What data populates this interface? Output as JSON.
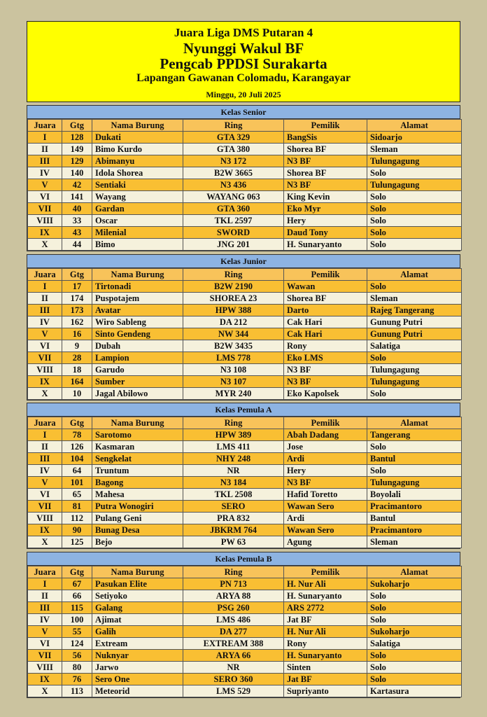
{
  "header": {
    "title": "Juara Liga DMS Putaran 4",
    "subtitle": "Nyunggi Wakul BF",
    "organizer": "Pengcab PPDSI Surakarta",
    "location": "Lapangan Gawanan Colomadu, Karangayar",
    "date": "Minggu, 20 Juli 2025"
  },
  "sections": [
    {
      "title": "Kelas Senior",
      "columns": [
        "Juara",
        "Gtg",
        "Nama Burung",
        "Ring",
        "Pemilik",
        "Alamat"
      ],
      "rows": [
        [
          "I",
          "128",
          "Dukati",
          "GTA 329",
          "BangSis",
          "Sidoarjo"
        ],
        [
          "II",
          "149",
          "Bimo Kurdo",
          "GTA 380",
          "Shorea BF",
          "Sleman"
        ],
        [
          "III",
          "129",
          "Abimanyu",
          "N3 172",
          "N3 BF",
          "Tulungagung"
        ],
        [
          "IV",
          "140",
          "Idola Shorea",
          "B2W 3665",
          "Shorea BF",
          "Solo"
        ],
        [
          "V",
          "42",
          "Sentiaki",
          "N3 436",
          "N3 BF",
          "Tulungagung"
        ],
        [
          "VI",
          "141",
          "Wayang",
          "WAYANG 063",
          "King Kevin",
          "Solo"
        ],
        [
          "VII",
          "40",
          "Gardan",
          "GTA 360",
          "Eko Myr",
          "Solo"
        ],
        [
          "VIII",
          "33",
          "Oscar",
          "TKL 2597",
          "Hery",
          "Solo"
        ],
        [
          "IX",
          "43",
          "Milenial",
          "SWORD",
          "Daud Tony",
          "Solo"
        ],
        [
          "X",
          "44",
          "Bimo",
          "JNG 201",
          "H. Sunaryanto",
          "Solo"
        ]
      ]
    },
    {
      "title": "Kelas Junior",
      "columns": [
        "Juara",
        "Gtg",
        "Nama Burung",
        "Ring",
        "Pemilik",
        "Alamat"
      ],
      "rows": [
        [
          "I",
          "17",
          "Tirtonadi",
          "B2W 2190",
          "Wawan",
          "Solo"
        ],
        [
          "II",
          "174",
          "Puspotajem",
          "SHOREA 23",
          "Shorea BF",
          "Sleman"
        ],
        [
          "III",
          "173",
          "Avatar",
          "HPW 388",
          "Darto",
          "Rajeg Tangerang"
        ],
        [
          "IV",
          "162",
          "Wiro Sableng",
          "DA 212",
          "Cak Hari",
          "Gunung Putri"
        ],
        [
          "V",
          "16",
          "Sinto Gendeng",
          "NW 344",
          "Cak Hari",
          "Gunung Putri"
        ],
        [
          "VI",
          "9",
          "Dubah",
          "B2W 3435",
          "Rony",
          "Salatiga"
        ],
        [
          "VII",
          "28",
          "Lampion",
          "LMS 778",
          "Eko LMS",
          "Solo"
        ],
        [
          "VIII",
          "18",
          "Garudo",
          "N3 108",
          "N3 BF",
          "Tulungagung"
        ],
        [
          "IX",
          "164",
          "Sumber",
          "N3 107",
          "N3 BF",
          "Tulungagung"
        ],
        [
          "X",
          "10",
          "Jagal Abilowo",
          "MYR 240",
          "Eko Kapolsek",
          "Solo"
        ]
      ]
    },
    {
      "title": "Kelas Pemula A",
      "columns": [
        "Juara",
        "Gtg",
        "Nama Burung",
        "Ring",
        "Pemilik",
        "Alamat"
      ],
      "rows": [
        [
          "I",
          "78",
          "Sarotomo",
          "HPW 389",
          "Abah Dadang",
          "Tangerang"
        ],
        [
          "II",
          "126",
          "Kasmaran",
          "LMS 411",
          "Jose",
          "Solo"
        ],
        [
          "III",
          "104",
          "Sengkelat",
          "NHY 248",
          "Ardi",
          "Bantul"
        ],
        [
          "IV",
          "64",
          "Truntum",
          "NR",
          "Hery",
          "Solo"
        ],
        [
          "V",
          "101",
          "Bagong",
          "N3 184",
          "N3 BF",
          "Tulungagung"
        ],
        [
          "VI",
          "65",
          "Mahesa",
          "TKL 2508",
          "Hafid Toretto",
          "Boyolali"
        ],
        [
          "VII",
          "81",
          "Putra Wonogiri",
          "SERO",
          "Wawan Sero",
          "Pracimantoro"
        ],
        [
          "VIII",
          "112",
          "Pulang Geni",
          "PRA 832",
          "Ardi",
          "Bantul"
        ],
        [
          "IX",
          "90",
          "Bunag Desa",
          "JBKRM 764",
          "Wawan Sero",
          "Pracimantoro"
        ],
        [
          "X",
          "125",
          "Bejo",
          "PW 63",
          "Agung",
          "Sleman"
        ]
      ]
    },
    {
      "title": "Kelas Pemula B",
      "columns": [
        "Juara",
        "Gtg",
        "Nama Burung",
        "Ring",
        "Pemilik",
        "Alamat"
      ],
      "rows": [
        [
          "I",
          "67",
          "Pasukan Elite",
          "PN 713",
          "H. Nur Ali",
          "Sukoharjo"
        ],
        [
          "II",
          "66",
          "Setiyoko",
          "ARYA 88",
          "H. Sunaryanto",
          "Solo"
        ],
        [
          "III",
          "115",
          "Galang",
          "PSG 260",
          "ARS 2772",
          "Solo"
        ],
        [
          "IV",
          "100",
          "Ajimat",
          "LMS 486",
          "Jat BF",
          "Solo"
        ],
        [
          "V",
          "55",
          "Galih",
          "DA 277",
          "H. Nur Ali",
          "Sukoharjo"
        ],
        [
          "VI",
          "124",
          "Extream",
          "EXTREAM 388",
          "Rony",
          "Salatiga"
        ],
        [
          "VII",
          "56",
          "Nuknyar",
          "ARYA 66",
          "H. Sunaryanto",
          "Solo"
        ],
        [
          "VIII",
          "80",
          "Jarwo",
          "NR",
          "Sinten",
          "Solo"
        ],
        [
          "IX",
          "76",
          "Sero One",
          "SERO 360",
          "Jat BF",
          "Solo"
        ],
        [
          "X",
          "113",
          "Meteorid",
          "LMS 529",
          "Supriyanto",
          "Kartasura"
        ]
      ]
    }
  ]
}
